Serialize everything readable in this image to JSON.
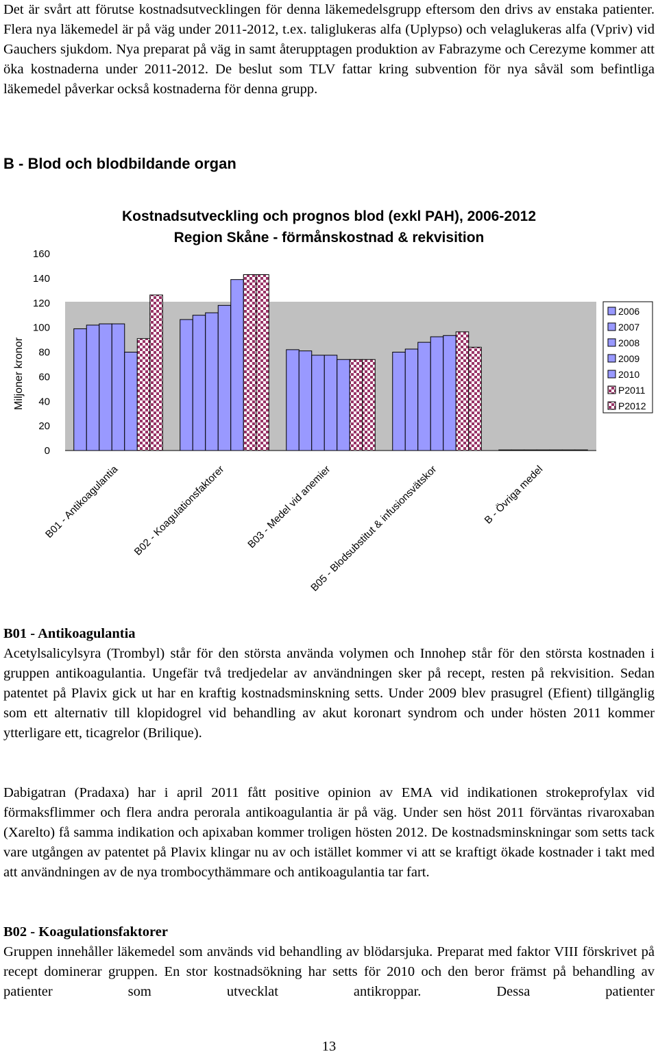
{
  "intro": "Det är svårt att förutse kostnadsutvecklingen för denna läkemedelsgrupp eftersom den drivs av enstaka patienter. Flera nya läkemedel är på väg under 2011-2012, t.ex. taliglukeras alfa (Uplypso) och velaglukeras alfa (Vpriv) vid Gauchers sjukdom. Nya preparat på väg in samt återupptagen produktion av Fabrazyme och Cerezyme kommer att öka kostnaderna under 2011-2012. De beslut som TLV fattar kring subvention för nya såväl som befintliga läkemedel påverkar också kostnaderna för denna grupp.",
  "section_heading": "B - Blod och blodbildande organ",
  "chart_data": {
    "type": "bar",
    "title": "Kostnadsutveckling och prognos blod (exkl PAH), 2006-2012",
    "subtitle": "Region Skåne - förmånskostnad & rekvisition",
    "y_label": "Miljoner kronor",
    "categories": [
      "B01 - Antikoagulantia",
      "B02 - Koagulationsfaktorer",
      "B03 - Medel vid anemier",
      "B05 - Blodsubstitut & infusionsvätskor",
      "B - Övriga medel"
    ],
    "series": [
      {
        "name": "2006",
        "color": "#9999ff",
        "values": [
          99,
          106.5,
          82,
          80,
          0.5
        ]
      },
      {
        "name": "2007",
        "color": "#9999ff",
        "values": [
          102,
          110,
          81,
          82.5,
          0.5
        ]
      },
      {
        "name": "2008",
        "color": "#9999ff",
        "values": [
          103,
          112,
          77.5,
          88,
          0.5
        ]
      },
      {
        "name": "2009",
        "color": "#9999ff",
        "values": [
          103,
          118,
          77.5,
          92.5,
          0.5
        ]
      },
      {
        "name": "2010",
        "color": "#9999ff",
        "values": [
          80,
          139,
          74,
          93.5,
          0.5
        ]
      },
      {
        "name": "P2011",
        "color": "#993366",
        "pattern": "checker",
        "values": [
          91,
          143,
          74,
          96.5,
          0.5
        ]
      },
      {
        "name": "P2012",
        "color": "#993366",
        "pattern": "checker",
        "values": [
          126.5,
          143,
          74,
          84,
          0.5
        ]
      }
    ],
    "ylim": [
      0,
      160
    ],
    "yticks": [
      0,
      20,
      40,
      60,
      80,
      100,
      120,
      140,
      160
    ],
    "plot_background": "#c0c0c0",
    "legend": "right"
  },
  "sections": [
    {
      "heading": "B01 - Antikoagulantia",
      "paragraphs": [
        "Acetylsalicylsyra (Trombyl) står för den största använda volymen och Innohep står för den största kostnaden i gruppen antikoagulantia. Ungefär två tredjedelar av användningen sker på recept, resten på rekvisition. Sedan patentet på Plavix gick ut har en kraftig kostnadsminskning setts. Under 2009 blev prasugrel (Efient) tillgänglig som ett alternativ till klopidogrel vid behandling av akut koronart syndrom och under hösten 2011 kommer ytterligare ett, ticagrelor (Brilique).",
        "Dabigatran (Pradaxa) har i april 2011 fått positive opinion av EMA vid indikationen strokeprofylax vid förmaksflimmer och flera andra perorala antikoagulantia är på väg. Under sen höst 2011 förväntas rivaroxaban (Xarelto) få samma indikation och apixaban kommer troligen hösten 2012. De kostnadsminskningar som setts tack vare utgången av patentet på Plavix klingar nu av och istället kommer vi att se kraftigt ökade kostnader i takt med att användningen av de nya trombocythämmare och antikoagulantia tar fart."
      ]
    },
    {
      "heading": "B02 - Koagulationsfaktorer",
      "paragraphs": [
        "Gruppen innehåller läkemedel som används vid behandling av blödarsjuka. Preparat med faktor VIII förskrivet på recept dominerar gruppen. En stor kostnadsökning har setts för 2010 och den beror främst på behandling av patienter som utvecklat antikroppar. Dessa patienter"
      ]
    }
  ],
  "page_number": "13"
}
